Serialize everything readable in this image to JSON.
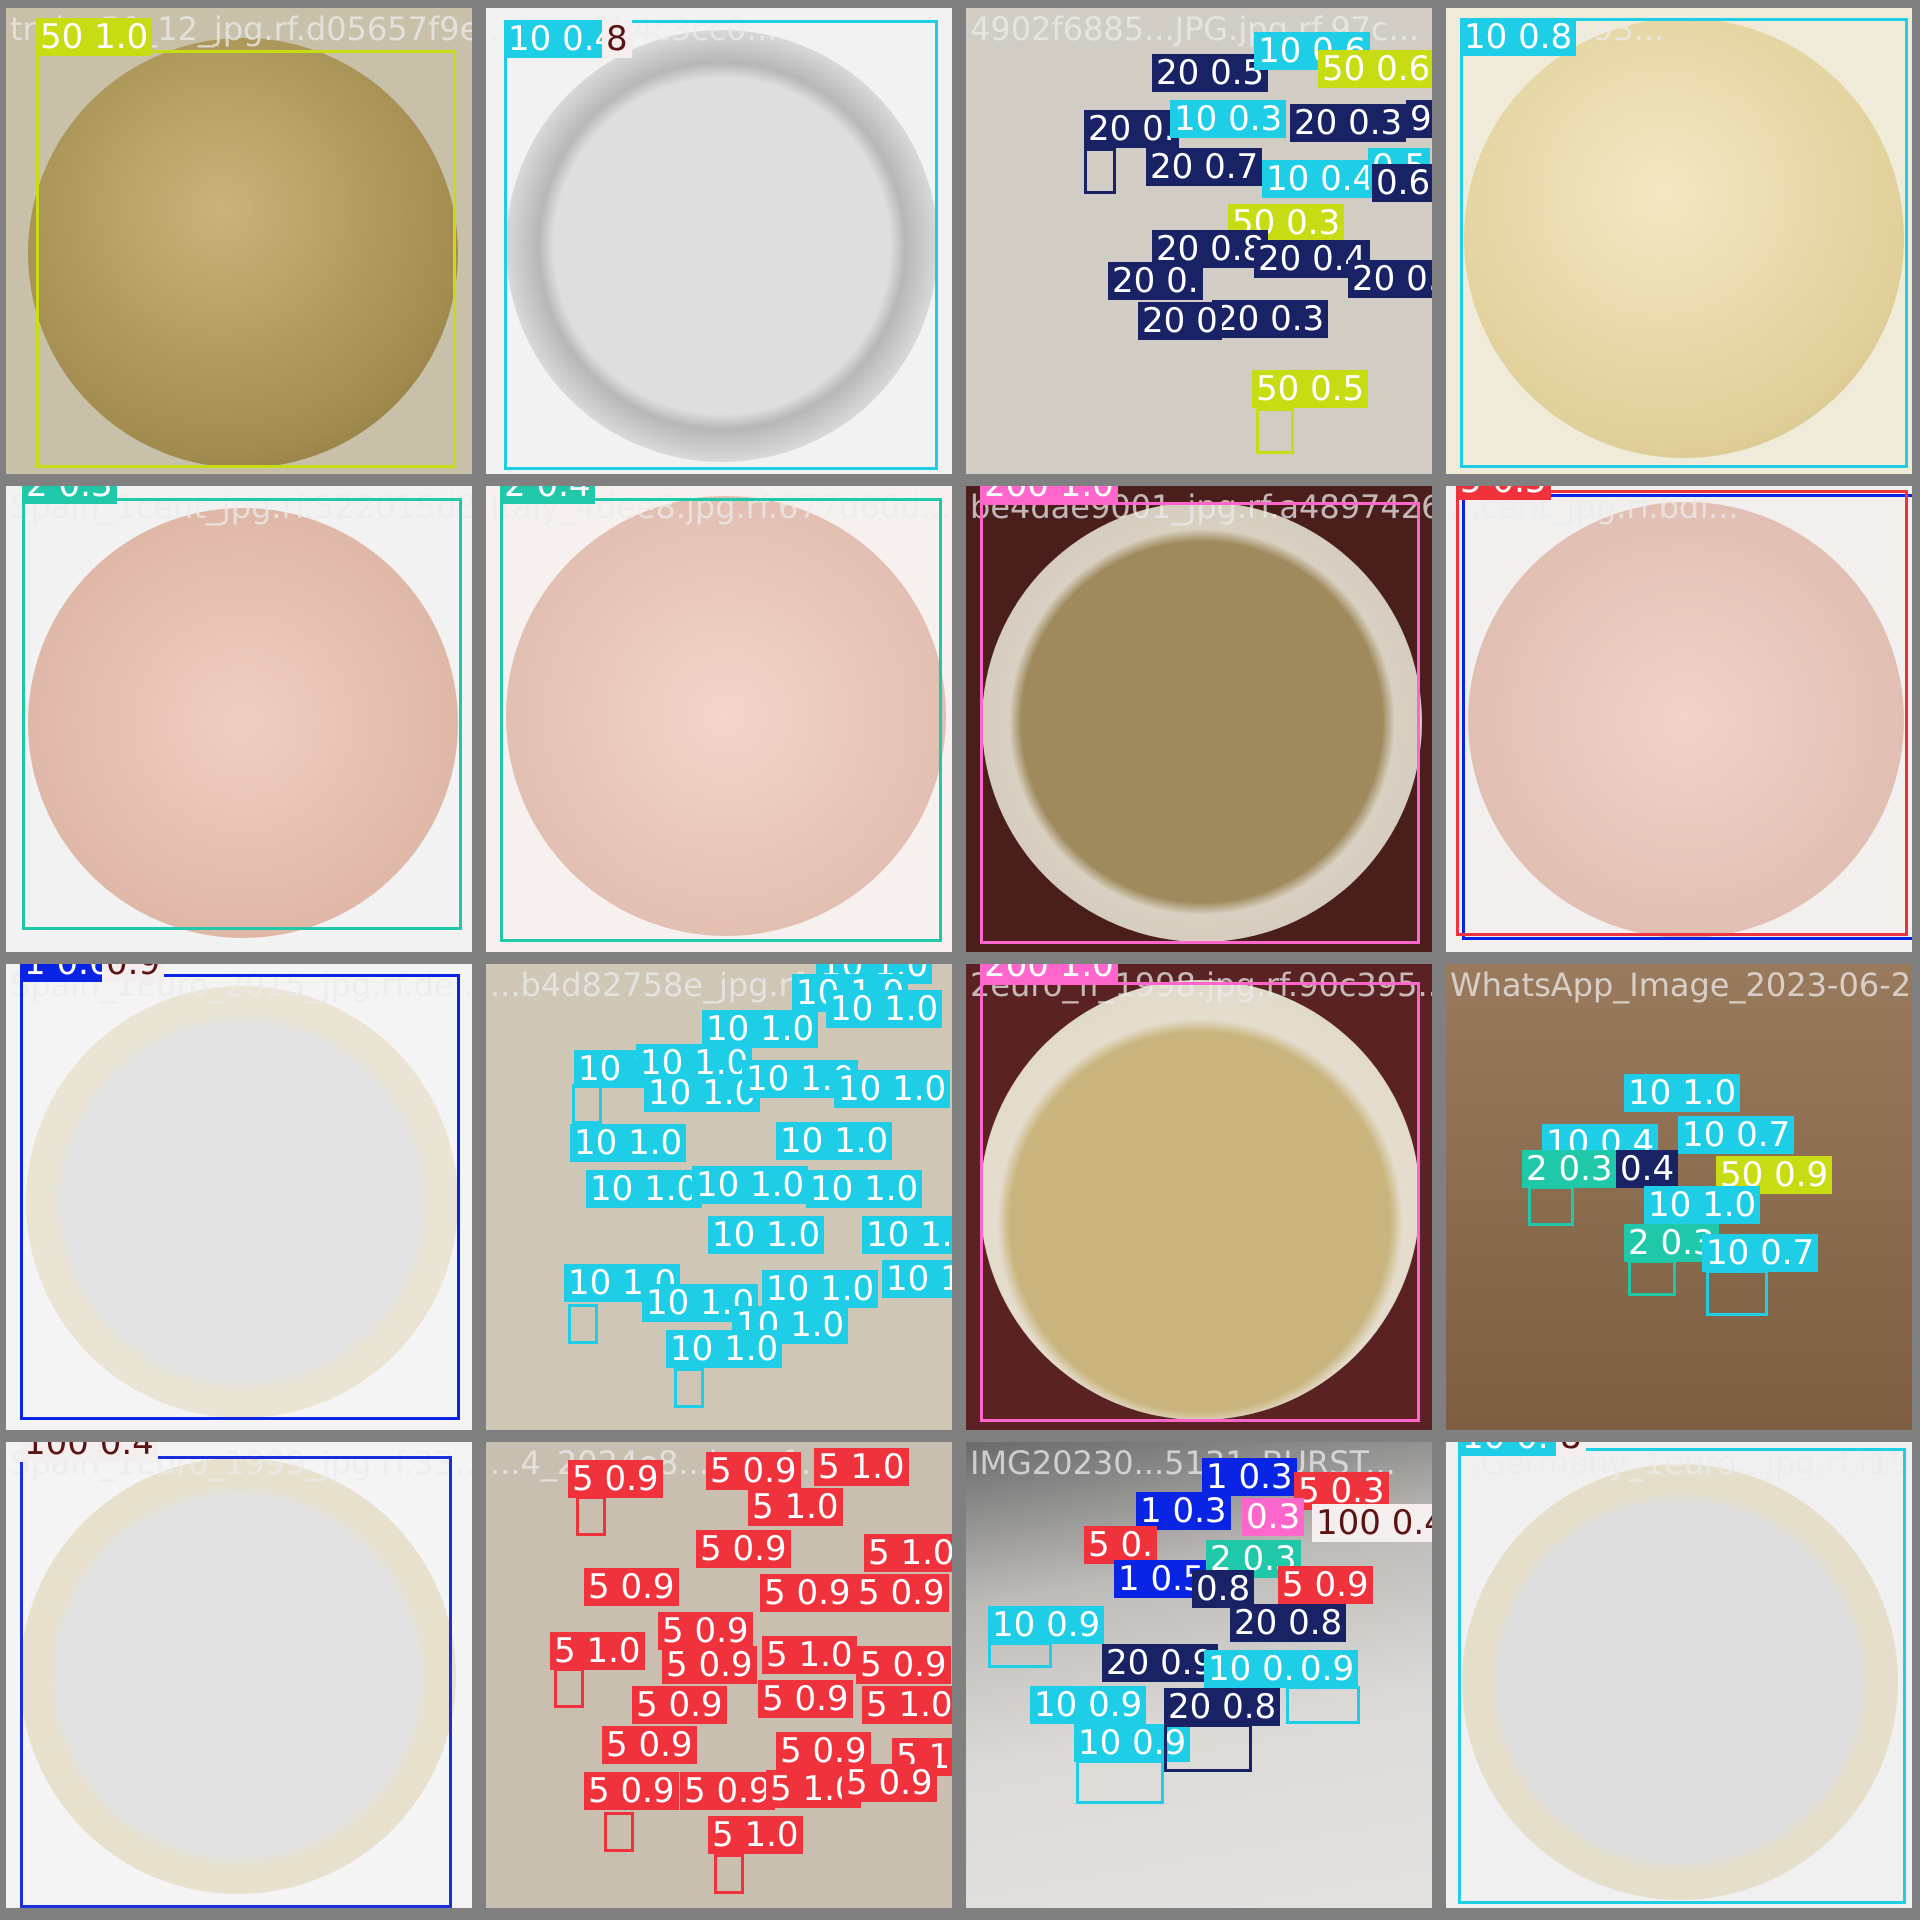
{
  "colors": {
    "c50": "#c8dc14",
    "c10": "#1ecde6",
    "c20": "#1a2266",
    "c2": "#1ec8a8",
    "c200": "#ff66cc",
    "c5": "#f0323c",
    "c1": "#0a24e6",
    "c100": "#f5eeee",
    "c100text": "#5a1414"
  },
  "tiles": [
    {
      "name": "tile-1",
      "fname": "train_50_12_jpg.rf.d05657f9e...",
      "bg": "#bba56b",
      "dets": [
        {
          "t": "50 1.0",
          "c": "c50"
        }
      ]
    },
    {
      "name": "tile-2",
      "fname": "...jpg.rf.b4c3cc0...",
      "bg": "#f2f2f2",
      "dets": [
        {
          "t": "10 0.4",
          "c": "c10"
        },
        {
          "t": "8",
          "c": "c100"
        }
      ]
    },
    {
      "name": "tile-3",
      "fname": "4902f6885...JPG.jpg.rf.97c...",
      "bg": "#d2cdc4",
      "dets": [
        {
          "t": "20 0.5",
          "c": "c20"
        },
        {
          "t": "10 0.6",
          "c": "c10"
        },
        {
          "t": "50 0.6",
          "c": "c50"
        },
        {
          "t": "20 0.",
          "c": "c20"
        },
        {
          "t": "10 0.3",
          "c": "c10"
        },
        {
          "t": "20 0.3",
          "c": "c20"
        },
        {
          "t": "9",
          "c": "c20"
        },
        {
          "t": "20 0.7",
          "c": "c20"
        },
        {
          "t": "10 0.4",
          "c": "c10"
        },
        {
          "t": "0.5",
          "c": "c10"
        },
        {
          "t": "0.6",
          "c": "c20"
        },
        {
          "t": "50 0.3",
          "c": "c50"
        },
        {
          "t": "20 0.8",
          "c": "c20"
        },
        {
          "t": "20 0.4",
          "c": "c20"
        },
        {
          "t": "20 0.9",
          "c": "c20"
        },
        {
          "t": "20 0.",
          "c": "c20"
        },
        {
          "t": "20 0.3",
          "c": "c20"
        },
        {
          "t": "20 0",
          "c": "c20"
        },
        {
          "t": "50 0.5",
          "c": "c50"
        }
      ]
    },
    {
      "name": "tile-4",
      "fname": "...jpg.rf.893...",
      "bg": "#ede3c6",
      "dets": [
        {
          "t": "10 0.8",
          "c": "c10"
        }
      ]
    },
    {
      "name": "tile-5",
      "fname": "Spain_1cent_jpg.rf.522015d8...",
      "bg": "#f2f2f2",
      "dets": [
        {
          "t": "2 0.3",
          "c": "c2"
        }
      ]
    },
    {
      "name": "tile-6",
      "fname": "Italy_4dee8.jpg.rf.677d60d...",
      "bg": "#f6f1ee",
      "dets": [
        {
          "t": "2 0.4",
          "c": "c2"
        }
      ]
    },
    {
      "name": "tile-7",
      "fname": "be4dae9001_jpg.rf.a4897426...",
      "bg": "#4a1e1a",
      "dets": [
        {
          "t": "200 1.0",
          "c": "c200"
        }
      ]
    },
    {
      "name": "tile-8",
      "fname": "...cent_jpg.rf.bdf...",
      "bg": "#f2f0ee",
      "dets": [
        {
          "t": "5 0.5",
          "c": "c5"
        }
      ]
    },
    {
      "name": "tile-9",
      "fname": "Spain_1Euro_2015_jpg.rf.de...",
      "bg": "#f4f4f4",
      "dets": [
        {
          "t": "1 0.6",
          "c": "c1"
        },
        {
          "t": "0.9",
          "c": "c100"
        }
      ]
    },
    {
      "name": "tile-10",
      "fname": "...b4d82758e_jpg.rf...",
      "bg": "#cfc6b6",
      "dets": [
        {
          "t": "10 1.0",
          "c": "c10"
        }
      ]
    },
    {
      "name": "tile-11",
      "fname": "2euro_fi_1998.jpg.rf.90c395...",
      "bg": "#5a2222",
      "dets": [
        {
          "t": "200 1.0",
          "c": "c200"
        }
      ]
    },
    {
      "name": "tile-12",
      "fname": "WhatsApp_Image_2023-06-2...",
      "bg": "#8a6a4c",
      "dets": [
        {
          "t": "10 1.0",
          "c": "c10"
        },
        {
          "t": "10 0.7",
          "c": "c10"
        },
        {
          "t": "10 0.4",
          "c": "c10"
        },
        {
          "t": "2 0.3",
          "c": "c2"
        },
        {
          "t": "0.4",
          "c": "c20"
        },
        {
          "t": "50 0.9",
          "c": "c50"
        },
        {
          "t": "10 1.0",
          "c": "c10"
        },
        {
          "t": "2 0.3",
          "c": "c2"
        },
        {
          "t": "10 0.7",
          "c": "c10"
        }
      ]
    },
    {
      "name": "tile-13",
      "fname": "Spain_1Euro_1999_jpg.rf.33...",
      "bg": "#f4f4f4",
      "dets": [
        {
          "t": "100 0.4",
          "c": "c100"
        }
      ]
    },
    {
      "name": "tile-14",
      "fname": "...4_2024e8...jpg.rf...",
      "bg": "#c9bfb0",
      "dets": [
        {
          "t": "5 0.9",
          "c": "c5"
        },
        {
          "t": "5 1.0",
          "c": "c5"
        }
      ]
    },
    {
      "name": "tile-15",
      "fname": "IMG20230...5131_BURST...",
      "bg": "#d4d2cf",
      "dets": [
        {
          "t": "1 0.3",
          "c": "c1"
        },
        {
          "t": "5 0.3",
          "c": "c5"
        },
        {
          "t": "1 0.3",
          "c": "c1"
        },
        {
          "t": "0.3",
          "c": "c200"
        },
        {
          "t": "100 0.4",
          "c": "c100"
        },
        {
          "t": "5 0.",
          "c": "c5"
        },
        {
          "t": "1 0.5",
          "c": "c1"
        },
        {
          "t": "2 0.3",
          "c": "c2"
        },
        {
          "t": "0.8",
          "c": "c20"
        },
        {
          "t": "5 0.9",
          "c": "c5"
        },
        {
          "t": "10 0.9",
          "c": "c10"
        },
        {
          "t": "20 0.8",
          "c": "c20"
        },
        {
          "t": "20 0.9",
          "c": "c20"
        },
        {
          "t": "10 0.9",
          "c": "c10"
        },
        {
          "t": "0.9",
          "c": "c10"
        },
        {
          "t": "10 0.9",
          "c": "c10"
        },
        {
          "t": "20 0.8",
          "c": "c20"
        },
        {
          "t": "10 0.9",
          "c": "c10"
        }
      ]
    },
    {
      "name": "tile-16",
      "fname": "...Germany_1euro...jpg.rf.f19...",
      "bg": "#f0f0f0",
      "dets": [
        {
          "t": "10 0.4",
          "c": "c10"
        },
        {
          "t": "8",
          "c": "c100"
        }
      ]
    }
  ]
}
